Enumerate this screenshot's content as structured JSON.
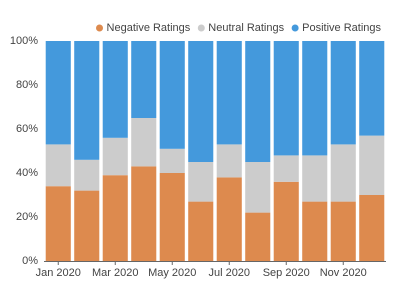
{
  "chart_data": {
    "type": "stacked_bar",
    "categories": [
      "Jan 2020",
      null,
      "Mar 2020",
      null,
      "May 2020",
      null,
      "Jul 2020",
      null,
      "Sep 2020",
      null,
      "Nov 2020",
      null
    ],
    "series": [
      {
        "name": "Negative Ratings",
        "color": "#dd8a4e",
        "values": [
          34,
          32,
          39,
          43,
          40,
          27,
          38,
          22,
          36,
          27,
          27,
          30
        ]
      },
      {
        "name": "Neutral Ratings",
        "color": "#cccccc",
        "values": [
          19,
          14,
          17,
          22,
          11,
          18,
          15,
          23,
          12,
          21,
          26,
          27
        ]
      },
      {
        "name": "Positive Ratings",
        "color": "#4499dc",
        "values": [
          47,
          54,
          44,
          35,
          49,
          55,
          47,
          55,
          52,
          52,
          47,
          43
        ]
      }
    ],
    "ylim": [
      0,
      100
    ],
    "yticks": [
      {
        "value": 0,
        "label": "0%"
      },
      {
        "value": 20,
        "label": "20%"
      },
      {
        "value": 40,
        "label": "40%"
      },
      {
        "value": 60,
        "label": "60%"
      },
      {
        "value": 80,
        "label": "80%"
      },
      {
        "value": 100,
        "label": "100%"
      }
    ],
    "legend": "top-right"
  }
}
